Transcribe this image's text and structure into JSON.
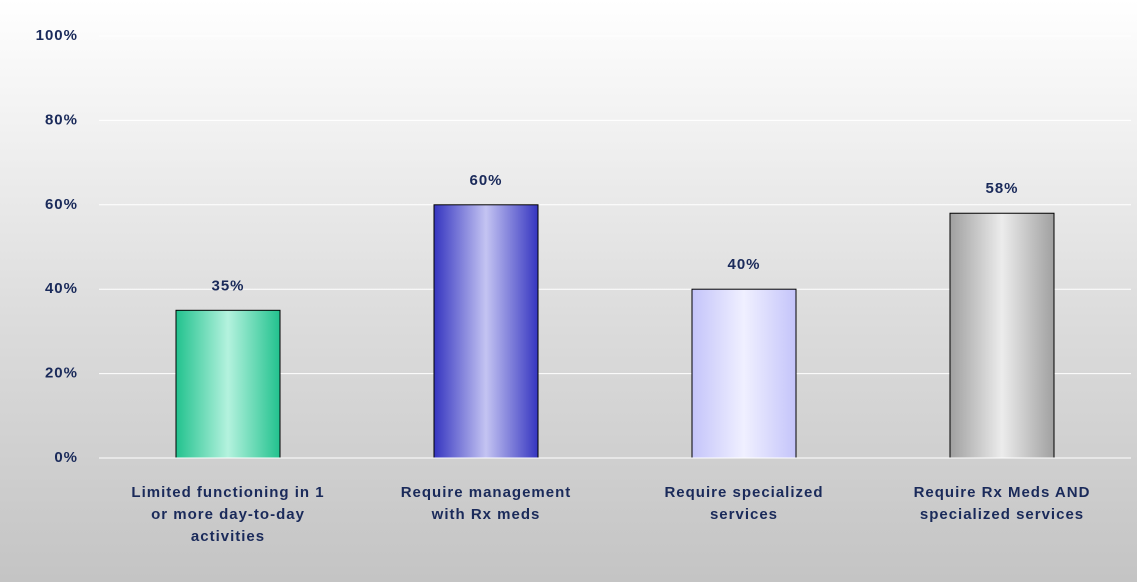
{
  "chart_data": {
    "type": "bar",
    "categories": [
      "Limited functioning in 1\nor more day-to-day\nactivities",
      "Require management\nwith Rx meds",
      "Require specialized\nservices",
      "Require Rx Meds AND\nspecialized services"
    ],
    "values": [
      35,
      60,
      40,
      58
    ],
    "value_labels": [
      "35%",
      "60%",
      "40%",
      "58%"
    ],
    "colors": [
      [
        "#22c28e",
        "#b4f2de"
      ],
      [
        "#3535c0",
        "#c4c4f2"
      ],
      [
        "#c4c4fa",
        "#f0f0ff"
      ],
      [
        "#a0a0a0",
        "#ececec"
      ]
    ],
    "ylim": [
      0,
      100
    ],
    "yticks": [
      {
        "value": 0,
        "label": "0%"
      },
      {
        "value": 20,
        "label": "20%"
      },
      {
        "value": 40,
        "label": "40%"
      },
      {
        "value": 60,
        "label": "60%"
      },
      {
        "value": 80,
        "label": "80%"
      },
      {
        "value": 100,
        "label": "100%"
      }
    ],
    "grid": true
  }
}
